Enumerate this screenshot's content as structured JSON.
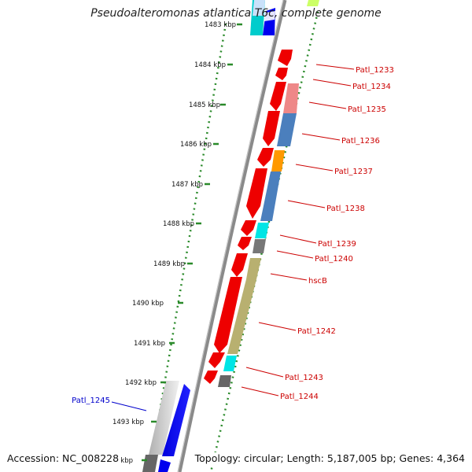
{
  "title": "Pseudoalteromonas atlantica T6c, complete genome",
  "accession_text": "Accession: NC_008228",
  "topology_text": "Topology: circular; Length: 5,187,005 bp; Genes: 4,364",
  "colors": {
    "forward_strand": "#ff0000",
    "highlight_label": "#0000cc",
    "label_text": "#cc0000",
    "scale_dots": "#2a8a2a",
    "backbone": "#888888"
  },
  "scale_ticks": [
    {
      "label": "1483 kbp"
    },
    {
      "label": "1484 kbp"
    },
    {
      "label": "1485 kbp"
    },
    {
      "label": "1486 kbp"
    },
    {
      "label": "1487 kbp"
    },
    {
      "label": "1488 kbp"
    },
    {
      "label": "1489 kbp"
    },
    {
      "label": "1490 kbp"
    },
    {
      "label": "1491 kbp"
    },
    {
      "label": "1492 kbp"
    },
    {
      "label": "1493 kbp"
    },
    {
      "label": "1494 kbp"
    }
  ],
  "gene_labels": [
    {
      "text": "Patl_1233"
    },
    {
      "text": "Patl_1234"
    },
    {
      "text": "Patl_1235"
    },
    {
      "text": "Patl_1236"
    },
    {
      "text": "Patl_1237"
    },
    {
      "text": "Patl_1238"
    },
    {
      "text": "Patl_1239"
    },
    {
      "text": "Patl_1240"
    },
    {
      "text": "hscB"
    },
    {
      "text": "Patl_1242"
    },
    {
      "text": "Patl_1243"
    },
    {
      "text": "Patl_1244"
    },
    {
      "text": "Patl_1245"
    }
  ]
}
